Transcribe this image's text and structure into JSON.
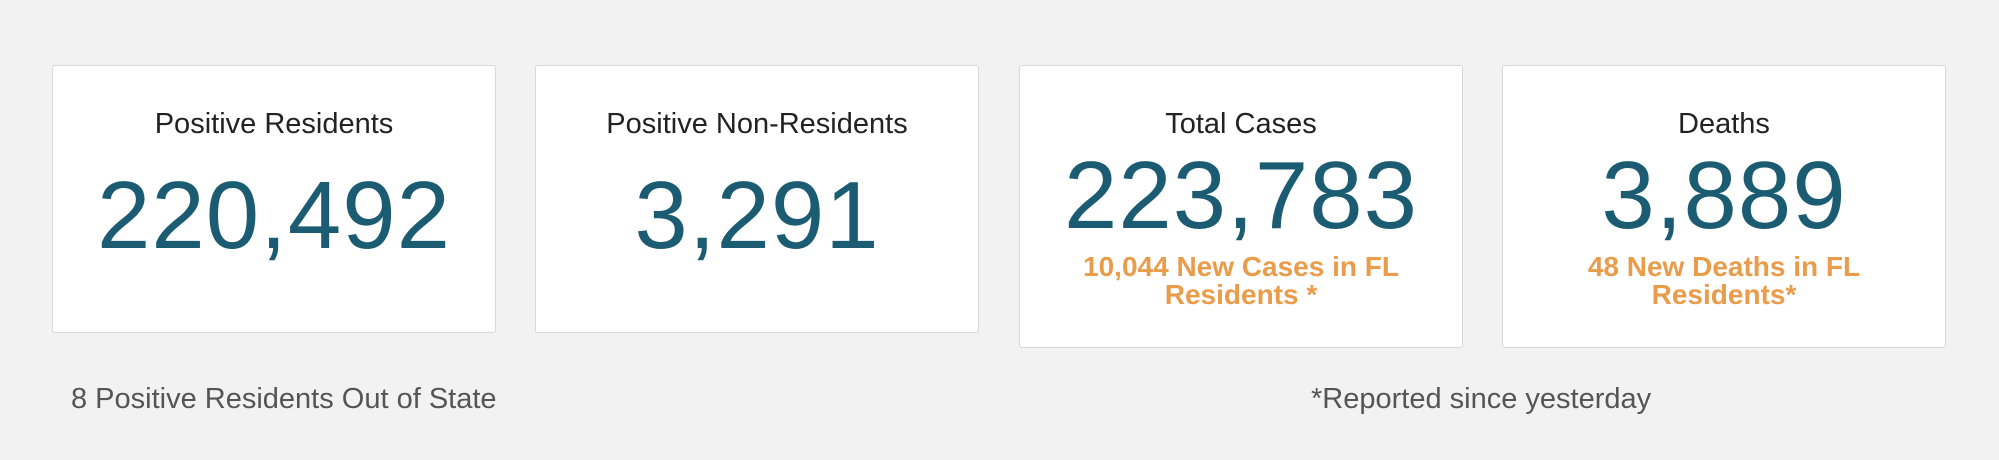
{
  "cards": [
    {
      "title": "Positive Residents",
      "value": "220,492"
    },
    {
      "title": "Positive Non-Residents",
      "value": "3,291"
    },
    {
      "title": "Total Cases",
      "value": "223,783",
      "note": "10,044 New Cases in FL Residents *"
    },
    {
      "title": "Deaths",
      "value": "3,889",
      "note": "48 New Deaths in FL Residents*"
    }
  ],
  "footer": {
    "left": "8 Positive Residents Out of State",
    "right": "*Reported since yesterday"
  }
}
